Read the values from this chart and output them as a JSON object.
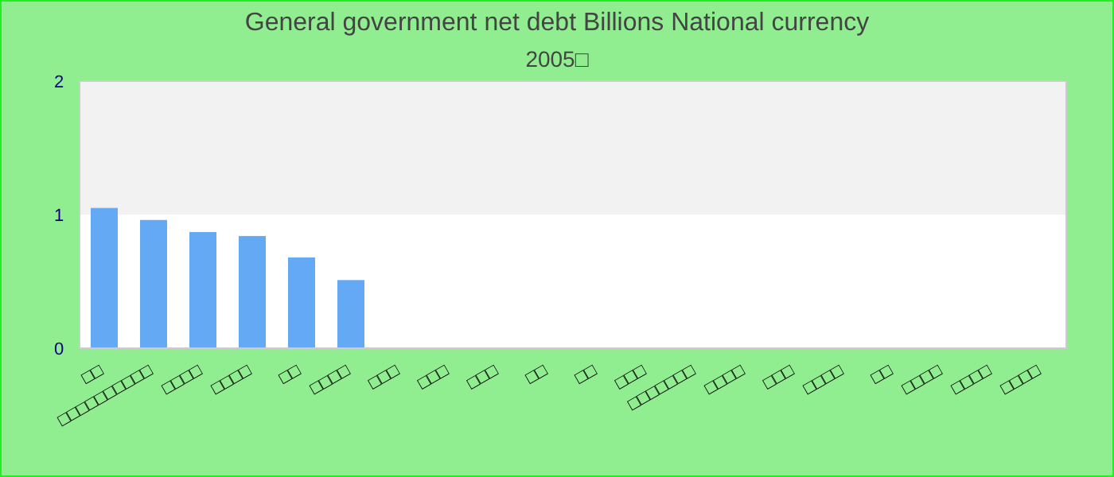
{
  "chart_data": {
    "type": "bar",
    "title": "General government net debt Billions National currency",
    "subtitle": "2005□",
    "categories": [
      "□□",
      "□□□□□□□□□□",
      "□□□□",
      "□□□□",
      "□□",
      "□□□□",
      "□□□",
      "□□□",
      "□□□",
      "□□",
      "□□",
      "□□□",
      "□□□□□□□",
      "□□□□",
      "□□□",
      "□□□□",
      "□□",
      "□□□□",
      "□□□□",
      "□□□□"
    ],
    "values": [
      1.05,
      0.96,
      0.87,
      0.84,
      0.68,
      0.51,
      null,
      null,
      null,
      null,
      null,
      null,
      null,
      null,
      null,
      null,
      null,
      null,
      null,
      null
    ],
    "color": "#63a9f3",
    "ylim": [
      0,
      2
    ],
    "yticks": [
      0,
      1,
      2
    ],
    "bands": [
      {
        "axis": "y",
        "from": 1,
        "to": 2,
        "color": "#f2f2f2"
      }
    ]
  }
}
